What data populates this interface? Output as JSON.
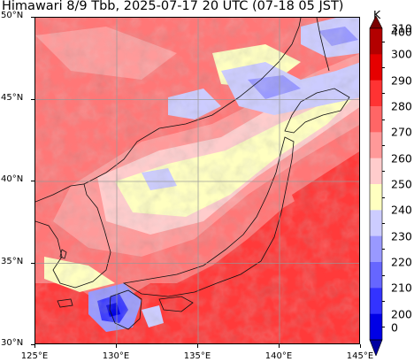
{
  "title": "Himawari 8/9 Tbb, 2025-07-17 20 UTC (07-18 05 JST)",
  "map": {
    "lat_range": [
      30,
      50
    ],
    "lon_range": [
      125,
      145
    ],
    "lat_ticks": [
      "50°N",
      "45°N",
      "40°N",
      "35°N",
      "30°N"
    ],
    "lon_ticks": [
      "125°E",
      "130°E",
      "135°E",
      "140°E",
      "145°E"
    ],
    "grid": true,
    "grid_color": "#999999"
  },
  "colorbar": {
    "unit": "K",
    "tick_labels": [
      "400",
      "310",
      "300",
      "290",
      "280",
      "270",
      "260",
      "250",
      "240",
      "230",
      "220",
      "210",
      "200",
      "0"
    ],
    "colors": [
      "#7a0000",
      "#b30000",
      "#e60000",
      "#ff3333",
      "#ff6666",
      "#ff9999",
      "#ffcccc",
      "#ffffc0",
      "#ccccff",
      "#9999ff",
      "#6666ff",
      "#3333ff",
      "#0000e6",
      "#0000a0"
    ],
    "orientation": "vertical",
    "placement": "right"
  }
}
